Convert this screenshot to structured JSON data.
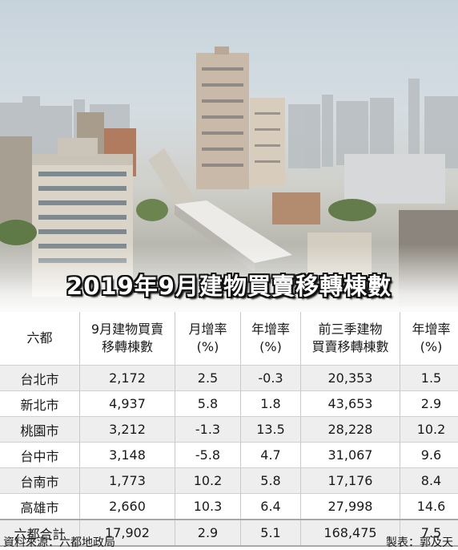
{
  "title": "2019年9月建物買賣移轉棟數",
  "headers": [
    "六都",
    "9月建物買賣\n移轉棟數",
    "月增率\n(%)",
    "年增率\n(%)",
    "前三季建物\n買賣移轉棟數",
    "年增率\n(%)"
  ],
  "rows": [
    [
      "台北市",
      "2,172",
      "2.5",
      "-0.3",
      "20,353",
      "1.5"
    ],
    [
      "新北市",
      "4,937",
      "5.8",
      "1.8",
      "43,653",
      "2.9"
    ],
    [
      "桃園市",
      "3,212",
      "-1.3",
      "13.5",
      "28,228",
      "10.2"
    ],
    [
      "台中市",
      "3,148",
      "-5.8",
      "4.7",
      "31,067",
      "9.6"
    ],
    [
      "台南市",
      "1,773",
      "10.2",
      "5.8",
      "17,176",
      "8.4"
    ],
    [
      "高雄市",
      "2,660",
      "10.3",
      "6.4",
      "27,998",
      "14.6"
    ],
    [
      "六都合計",
      "17,902",
      "2.9",
      "5.1",
      "168,475",
      "7.5"
    ]
  ],
  "footer": {
    "source": "資料來源：六都地政局",
    "maker": "製表：郭及天"
  },
  "chart_data": {
    "type": "table",
    "title": "2019年9月建物買賣移轉棟數",
    "columns": [
      "六都",
      "9月建物買賣移轉棟數",
      "月增率(%)",
      "年增率(%)",
      "前三季建物買賣移轉棟數",
      "年增率(%)"
    ],
    "categories": [
      "台北市",
      "新北市",
      "桃園市",
      "台中市",
      "台南市",
      "高雄市",
      "六都合計"
    ],
    "series": [
      {
        "name": "9月建物買賣移轉棟數",
        "values": [
          2172,
          4937,
          3212,
          3148,
          1773,
          2660,
          17902
        ]
      },
      {
        "name": "月增率(%)",
        "values": [
          2.5,
          5.8,
          -1.3,
          -5.8,
          10.2,
          10.3,
          2.9
        ]
      },
      {
        "name": "年增率(%)",
        "values": [
          -0.3,
          1.8,
          13.5,
          4.7,
          5.8,
          6.4,
          5.1
        ]
      },
      {
        "name": "前三季建物買賣移轉棟數",
        "values": [
          20353,
          43653,
          28228,
          31067,
          17176,
          27998,
          168475
        ]
      },
      {
        "name": "年增率(%)",
        "values": [
          1.5,
          2.9,
          10.2,
          9.6,
          8.4,
          14.6,
          7.5
        ]
      }
    ]
  }
}
